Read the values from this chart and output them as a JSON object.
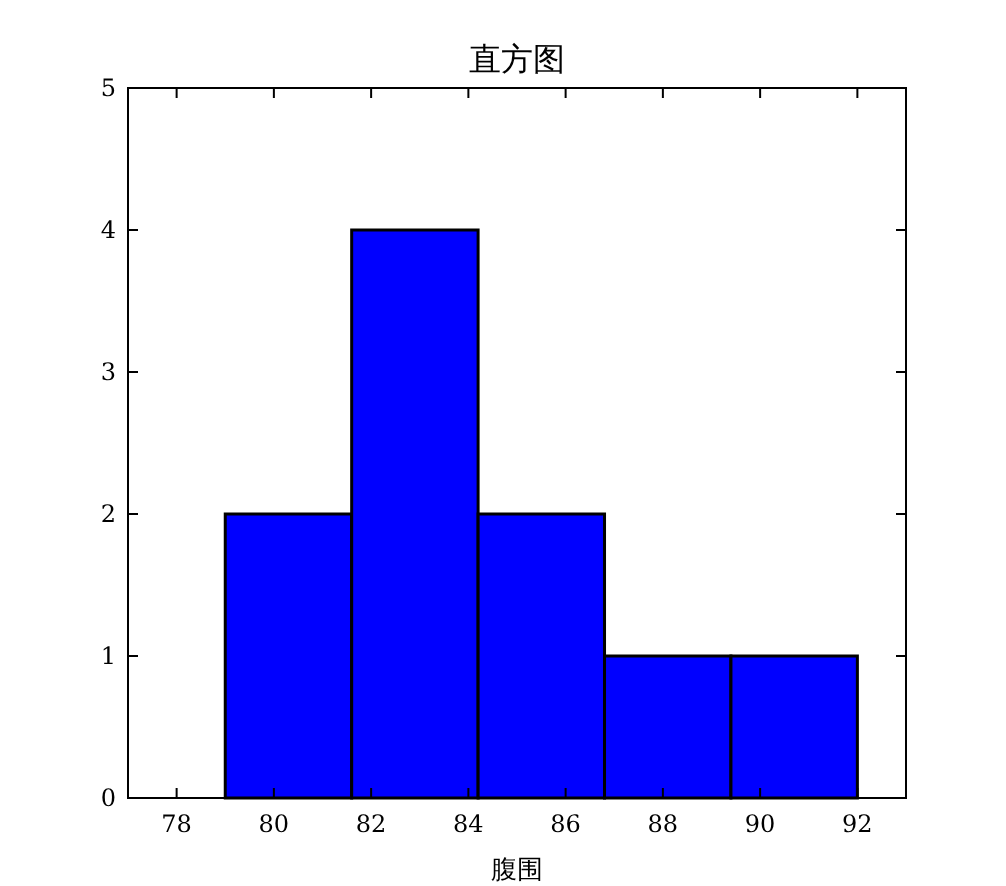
{
  "chart_data": {
    "type": "histogram",
    "title": "直方图",
    "xlabel": "腹围",
    "bins": [
      79,
      81.6,
      84.2,
      86.8,
      89.4,
      92
    ],
    "values": [
      2,
      4,
      2,
      1,
      1
    ],
    "color": "#0000ff",
    "xlim": [
      77,
      93
    ],
    "xticks": [
      78,
      80,
      82,
      84,
      86,
      88,
      90,
      92
    ],
    "ylim": [
      0,
      5
    ],
    "yticks": [
      0,
      1,
      2,
      3,
      4,
      5
    ],
    "grid": false
  }
}
